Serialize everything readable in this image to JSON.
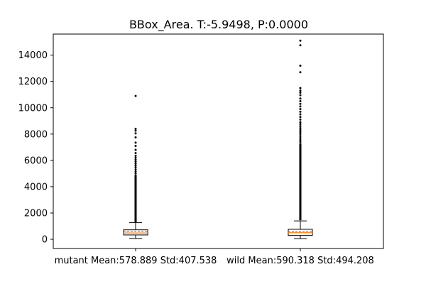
{
  "chart_data": {
    "type": "boxplot",
    "title": "BBox_Area. T:-5.9498, P:0.0000",
    "xlabel": "",
    "ylabel": "",
    "ylim": [
      -700,
      15600
    ],
    "yticks": [
      0,
      2000,
      4000,
      6000,
      8000,
      10000,
      12000,
      14000
    ],
    "ytick_labels": [
      "0",
      "2000",
      "4000",
      "6000",
      "8000",
      "10000",
      "12000",
      "14000"
    ],
    "categories": [
      "mutant Mean:578.889 Std:407.538",
      "wild Mean:590.318 Std:494.208"
    ],
    "boxes": [
      {
        "name": "mutant",
        "q1": 330,
        "median": 480,
        "q3": 720,
        "mean": 579,
        "whisker_low": 60,
        "whisker_high": 1280,
        "dense_outlier_range": [
          1300,
          4900
        ],
        "outliers": [
          5000,
          5150,
          5300,
          5450,
          5600,
          5750,
          5900,
          6050,
          6200,
          6350,
          6550,
          6800,
          7100,
          7350,
          7750,
          8050,
          8250,
          8400,
          10900
        ]
      },
      {
        "name": "wild",
        "q1": 290,
        "median": 500,
        "q3": 760,
        "mean": 590,
        "whisker_low": 50,
        "whisker_high": 1400,
        "dense_outlier_range": [
          1450,
          7300
        ],
        "outliers": [
          7400,
          7550,
          7700,
          7850,
          8000,
          8150,
          8300,
          8450,
          8600,
          8750,
          8900,
          9100,
          9300,
          9500,
          9700,
          9900,
          10100,
          10300,
          10500,
          10700,
          10950,
          11150,
          11300,
          11500,
          12700,
          13200,
          14750,
          15100
        ]
      }
    ],
    "colors": {
      "median": "#ff7f0e",
      "mean": "#2ca02c",
      "box": "#000000",
      "outlier": "#000000",
      "background": "#ffffff"
    }
  }
}
